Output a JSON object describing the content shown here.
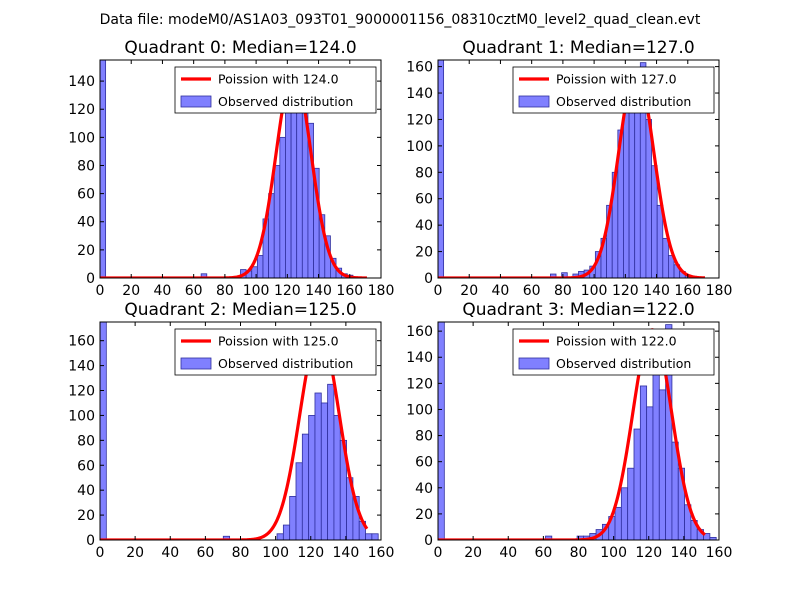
{
  "figure": {
    "suptitle": "Data file: modeM0/AS1A03_093T01_9000001156_08310cztM0_level2_quad_clean.evt"
  },
  "chart_data": [
    {
      "type": "bar",
      "title": "Quadrant 0: Median=124.0",
      "xlim": [
        0,
        180
      ],
      "ylim": [
        0,
        155
      ],
      "xticks": [
        0,
        20,
        40,
        60,
        80,
        100,
        120,
        140,
        160,
        180
      ],
      "yticks": [
        0,
        20,
        40,
        60,
        80,
        100,
        120,
        140
      ],
      "bin_width": 3.6,
      "hist_x": [
        0,
        64.8,
        90,
        93.6,
        97.2,
        100.8,
        104.4,
        108,
        111.6,
        115.2,
        118.8,
        122.4,
        126,
        129.6,
        133.2,
        136.8,
        140.4,
        144,
        147.6,
        151.2,
        154.8,
        158.4
      ],
      "hist_counts": [
        155,
        3,
        6,
        5,
        8,
        16,
        42,
        60,
        80,
        100,
        118,
        128,
        133,
        125,
        110,
        78,
        45,
        30,
        14,
        7,
        3,
        2
      ],
      "poisson_mean": 124.0,
      "poisson_peak": 147,
      "legend": [
        "Poission with 124.0",
        "Observed distribution"
      ]
    },
    {
      "type": "bar",
      "title": "Quadrant 1: Median=127.0",
      "xlim": [
        0,
        180
      ],
      "ylim": [
        0,
        165
      ],
      "xticks": [
        0,
        20,
        40,
        60,
        80,
        100,
        120,
        140,
        160,
        180
      ],
      "yticks": [
        0,
        20,
        40,
        60,
        80,
        100,
        120,
        140,
        160
      ],
      "bin_width": 3.6,
      "hist_x": [
        0,
        72,
        79.2,
        86.4,
        90,
        93.6,
        97.2,
        100.8,
        104.4,
        108,
        111.6,
        115.2,
        118.8,
        122.4,
        126,
        129.6,
        133.2,
        136.8,
        140.4,
        144,
        147.6,
        151.2,
        154.8,
        158.4
      ],
      "hist_counts": [
        165,
        3,
        4,
        3,
        5,
        6,
        9,
        20,
        30,
        55,
        80,
        112,
        150,
        130,
        145,
        163,
        120,
        85,
        55,
        30,
        17,
        10,
        5,
        2
      ],
      "poisson_mean": 127.0,
      "poisson_peak": 157,
      "legend": [
        "Poission with 127.0",
        "Observed distribution"
      ]
    },
    {
      "type": "bar",
      "title": "Quadrant 2: Median=125.0",
      "xlim": [
        0,
        160
      ],
      "ylim": [
        0,
        175
      ],
      "xticks": [
        0,
        20,
        40,
        60,
        80,
        100,
        120,
        140,
        160
      ],
      "yticks": [
        0,
        20,
        40,
        60,
        80,
        100,
        120,
        140,
        160
      ],
      "bin_width": 3.6,
      "hist_x": [
        0,
        70.2,
        100.8,
        104.4,
        108,
        111.6,
        115.2,
        118.8,
        122.4,
        126,
        129.6,
        133.2,
        136.8,
        140.4,
        144,
        147.6,
        151.2,
        154.8
      ],
      "hist_counts": [
        175,
        3,
        5,
        12,
        35,
        62,
        85,
        100,
        118,
        110,
        125,
        100,
        80,
        50,
        35,
        15,
        5,
        5
      ],
      "poisson_mean": 125.0,
      "poisson_peak": 167,
      "legend": [
        "Poission with 125.0",
        "Observed distribution"
      ]
    },
    {
      "type": "bar",
      "title": "Quadrant 3: Median=122.0",
      "xlim": [
        0,
        160
      ],
      "ylim": [
        0,
        167
      ],
      "xticks": [
        0,
        20,
        40,
        60,
        80,
        100,
        120,
        140,
        160
      ],
      "yticks": [
        0,
        20,
        40,
        60,
        80,
        100,
        120,
        140,
        160
      ],
      "bin_width": 3.6,
      "hist_x": [
        0,
        61.2,
        79.2,
        82.8,
        86.4,
        90,
        93.6,
        97.2,
        100.8,
        104.4,
        108,
        111.6,
        115.2,
        118.8,
        122.4,
        126,
        129.6,
        133.2,
        136.8,
        140.4,
        144,
        147.6,
        151.2,
        154.8
      ],
      "hist_counts": [
        167,
        3,
        3,
        3,
        5,
        8,
        12,
        18,
        25,
        40,
        55,
        85,
        118,
        102,
        128,
        115,
        165,
        75,
        55,
        27,
        15,
        8,
        5,
        2
      ],
      "poisson_mean": 122.0,
      "poisson_peak": 161,
      "legend": [
        "Poission with 122.0",
        "Observed distribution"
      ]
    }
  ]
}
